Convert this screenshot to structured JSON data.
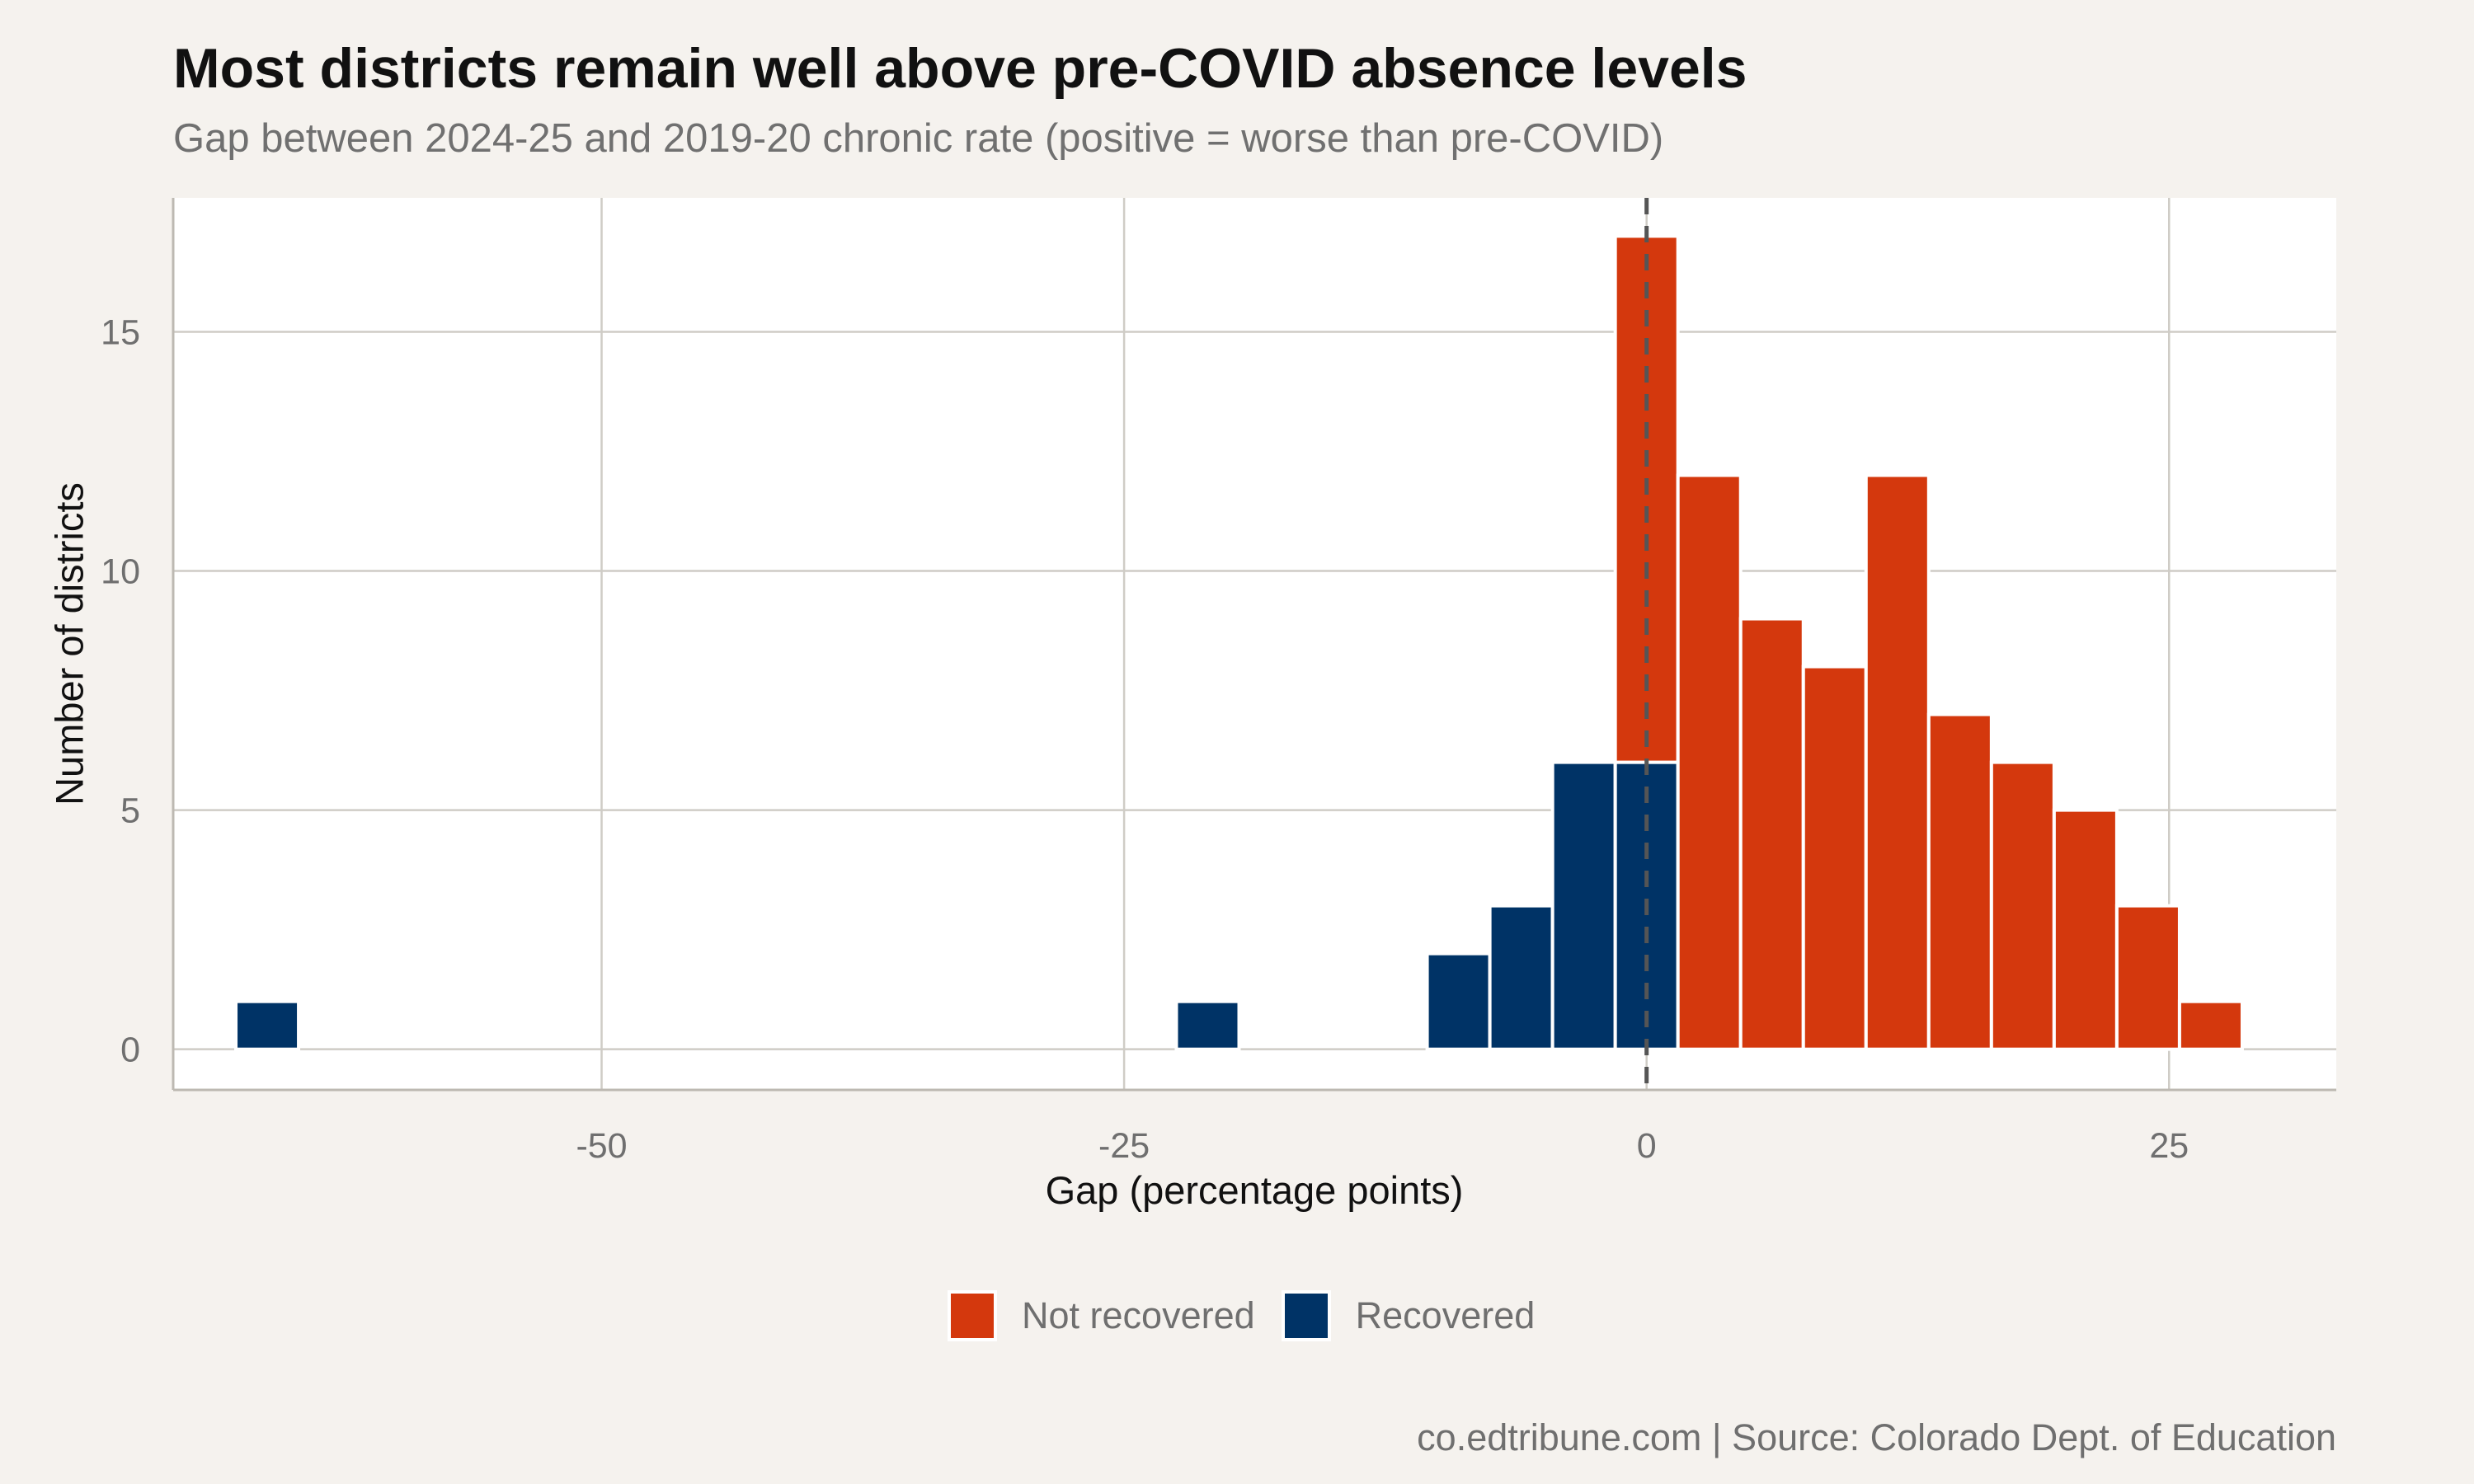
{
  "chart_data": {
    "type": "bar",
    "title": "Most districts remain well above pre-COVID absence levels",
    "subtitle": "Gap between 2024-25 and 2019-20 chronic rate (positive = worse than pre-COVID)",
    "caption": "co.edtribune.com | Source: Colorado Dept. of Education",
    "xlabel": "Gap (percentage points)",
    "ylabel": "Number of districts",
    "xlim": [
      -70.5,
      33
    ],
    "ylim": [
      -0.85,
      17.8
    ],
    "x_ticks": [
      -50,
      -25,
      0,
      25
    ],
    "x_tick_labels": [
      "-50",
      "-25",
      "0",
      "25"
    ],
    "y_ticks": [
      0,
      5,
      10,
      15
    ],
    "y_tick_labels": [
      "0",
      "5",
      "10",
      "15"
    ],
    "bin_width": 3,
    "stacked": true,
    "reference_line": {
      "x": 0,
      "style": "dashed"
    },
    "grid": true,
    "legend_position": "bottom",
    "series": [
      {
        "name": "Not recovered",
        "color": "#d4380d",
        "bins": [
          {
            "x": 0,
            "value": 11
          },
          {
            "x": 3,
            "value": 12
          },
          {
            "x": 6,
            "value": 9
          },
          {
            "x": 9,
            "value": 8
          },
          {
            "x": 12,
            "value": 12
          },
          {
            "x": 15,
            "value": 7
          },
          {
            "x": 18,
            "value": 6
          },
          {
            "x": 21,
            "value": 5
          },
          {
            "x": 24,
            "value": 3
          },
          {
            "x": 27,
            "value": 1
          }
        ]
      },
      {
        "name": "Recovered",
        "color": "#003366",
        "bins": [
          {
            "x": -66,
            "value": 1
          },
          {
            "x": -21,
            "value": 1
          },
          {
            "x": -9,
            "value": 2
          },
          {
            "x": -6,
            "value": 3
          },
          {
            "x": -3,
            "value": 6
          },
          {
            "x": 0,
            "value": 6
          }
        ]
      }
    ]
  }
}
